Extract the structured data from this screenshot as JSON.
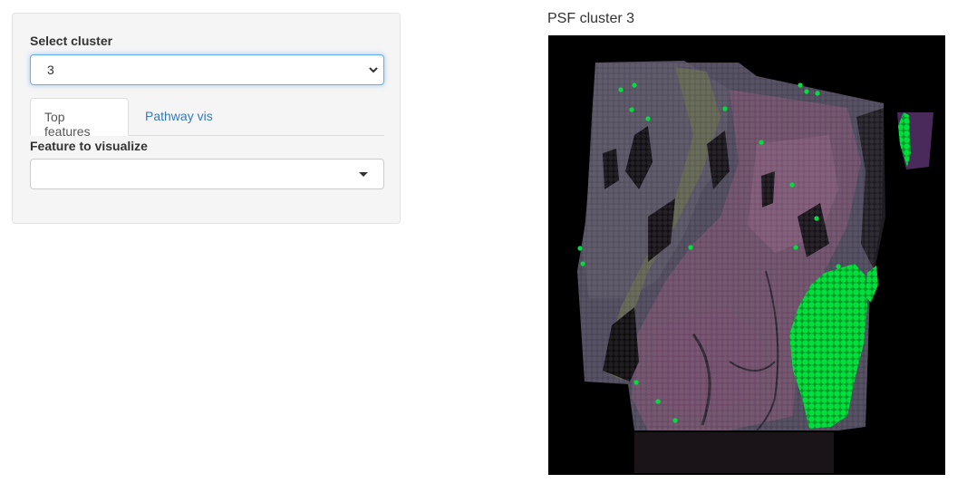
{
  "sidebar": {
    "cluster_label": "Select cluster",
    "cluster_value": "3",
    "tabs": [
      {
        "label": "Top features",
        "active": true
      },
      {
        "label": "Pathway vis",
        "active": false
      }
    ],
    "feature_label": "Feature to visualize",
    "feature_value": ""
  },
  "plot": {
    "title": "PSF cluster 3",
    "highlight_color": "#00e03c",
    "background_color": "#000000"
  }
}
